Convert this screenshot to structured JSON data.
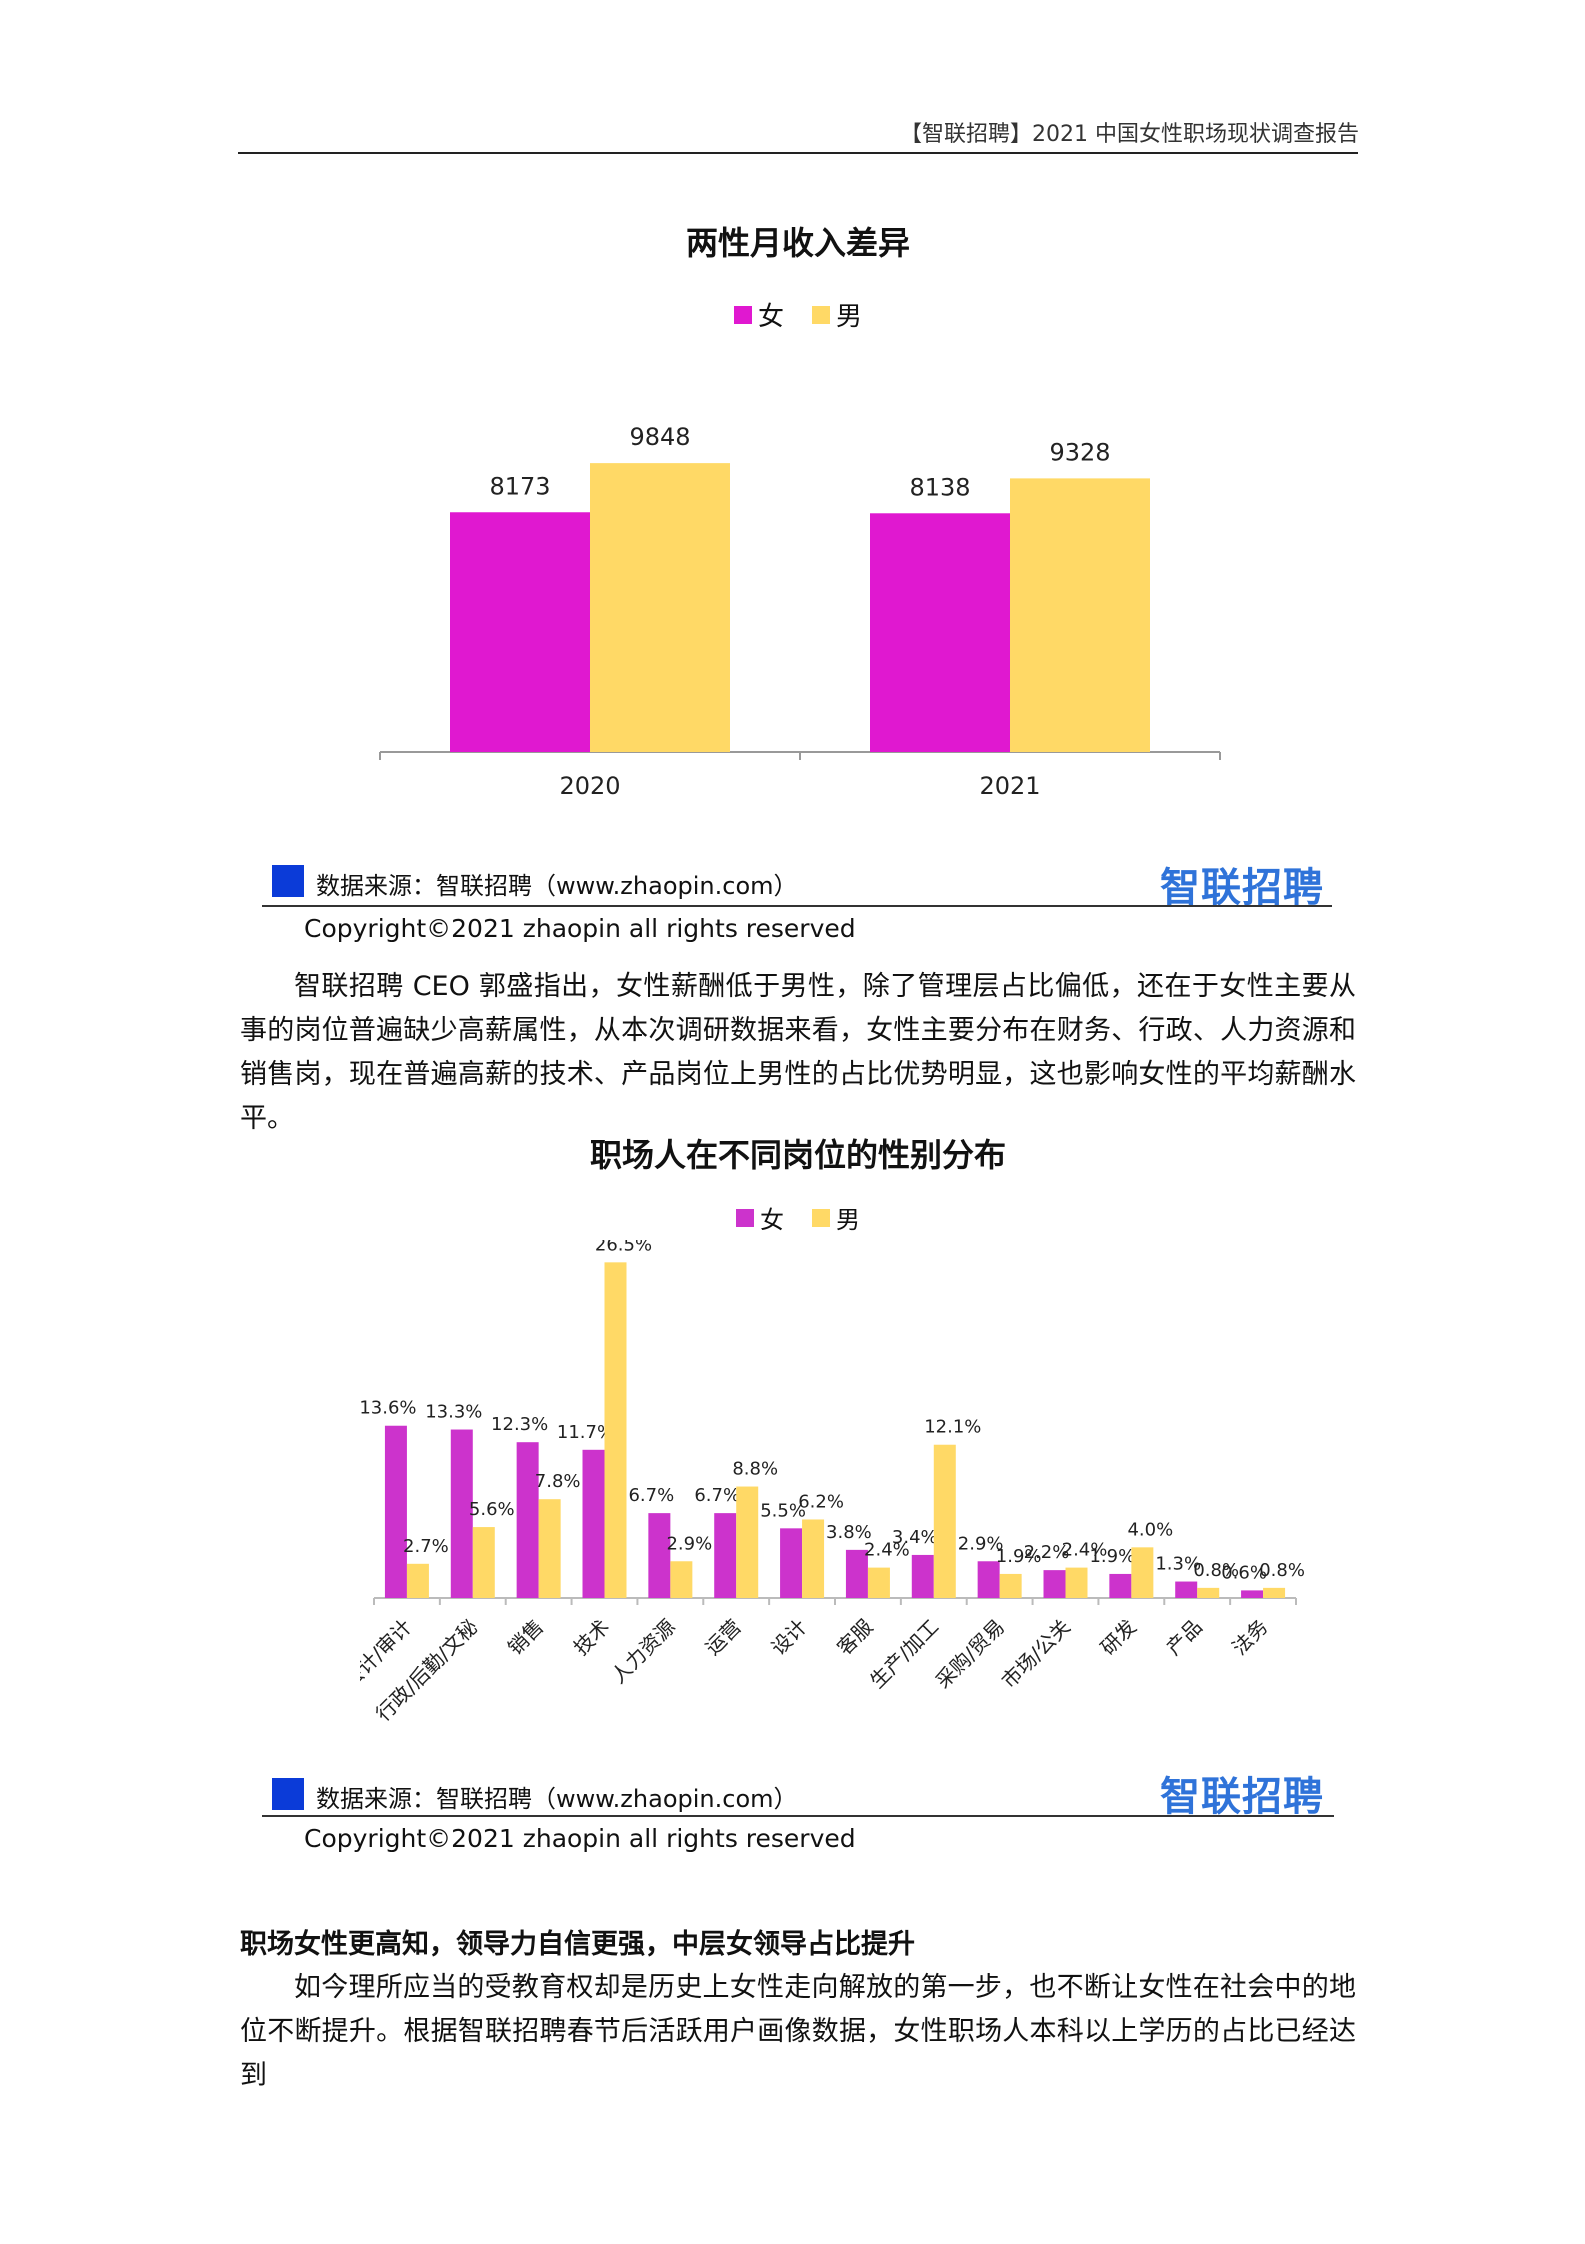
{
  "header": {
    "title": "【智联招聘】2021 中国女性职场现状调查报告"
  },
  "colors": {
    "female_chart1": "#e018d0",
    "female_chart2": "#cc33cc",
    "male": "#ffd966",
    "source_square": "#0b3bd8",
    "brand": "#2f73d9"
  },
  "source_block": {
    "label": "数据来源：智联招聘（www.zhaopin.com）",
    "brand_logo": "智联招聘",
    "copyright": "Copyright©2021 zhaopin all rights reserved"
  },
  "chart_data": [
    {
      "type": "bar",
      "title": "两性月收入差异",
      "categories": [
        "2020",
        "2021"
      ],
      "series": [
        {
          "name": "女",
          "values": [
            8173,
            8138
          ]
        },
        {
          "name": "男",
          "values": [
            9848,
            9328
          ]
        }
      ],
      "xlabel": "",
      "ylabel": "",
      "ylim": [
        0,
        12000
      ],
      "legend": "top-center",
      "grid": false
    },
    {
      "type": "bar",
      "title": "职场人在不同岗位的性别分布",
      "categories": [
        "财务/会计/审计",
        "行政/后勤/文秘",
        "销售",
        "技术",
        "人力资源",
        "运营",
        "设计",
        "客服",
        "生产/加工",
        "采购/贸易",
        "市场/公关",
        "研发",
        "产品",
        "法务"
      ],
      "series": [
        {
          "name": "女",
          "values": [
            13.6,
            13.3,
            12.3,
            11.7,
            6.7,
            6.7,
            5.5,
            3.8,
            3.4,
            2.9,
            2.2,
            1.9,
            1.3,
            0.6
          ],
          "labels": [
            "13.6%",
            "13.3%",
            "12.3%",
            "11.7%",
            "6.7%",
            "6.7%",
            "5.5%",
            "3.8%",
            "3.4%",
            "2.9%",
            "2.2%",
            "1.9%",
            "1.3%",
            "0.6%"
          ]
        },
        {
          "name": "男",
          "values": [
            2.7,
            5.6,
            7.8,
            26.5,
            2.9,
            8.8,
            6.2,
            2.4,
            12.1,
            1.9,
            2.4,
            4.0,
            0.8,
            0.8
          ],
          "labels": [
            "2.7%",
            "5.6%",
            "7.8%",
            "26.5%",
            "2.9%",
            "8.8%",
            "6.2%",
            "2.4%",
            "12.1%",
            "1.9%",
            "2.4%",
            "4.0%",
            "0.8%",
            "0.8%"
          ]
        }
      ],
      "xlabel": "",
      "ylabel": "",
      "ylim": [
        0,
        30
      ],
      "legend": "top-center",
      "grid": false
    }
  ],
  "paragraph1": "智联招聘 CEO 郭盛指出，女性薪酬低于男性，除了管理层占比偏低，还在于女性主要从事的岗位普遍缺少高薪属性，从本次调研数据来看，女性主要分布在财务、行政、人力资源和销售岗，现在普遍高薪的技术、产品岗位上男性的占比优势明显，这也影响女性的平均薪酬水平。",
  "section_heading": "职场女性更高知，领导力自信更强，中层女领导占比提升",
  "paragraph2": "如今理所应当的受教育权却是历史上女性走向解放的第一步，也不断让女性在社会中的地位不断提升。根据智联招聘春节后活跃用户画像数据，女性职场人本科以上学历的占比已经达到"
}
